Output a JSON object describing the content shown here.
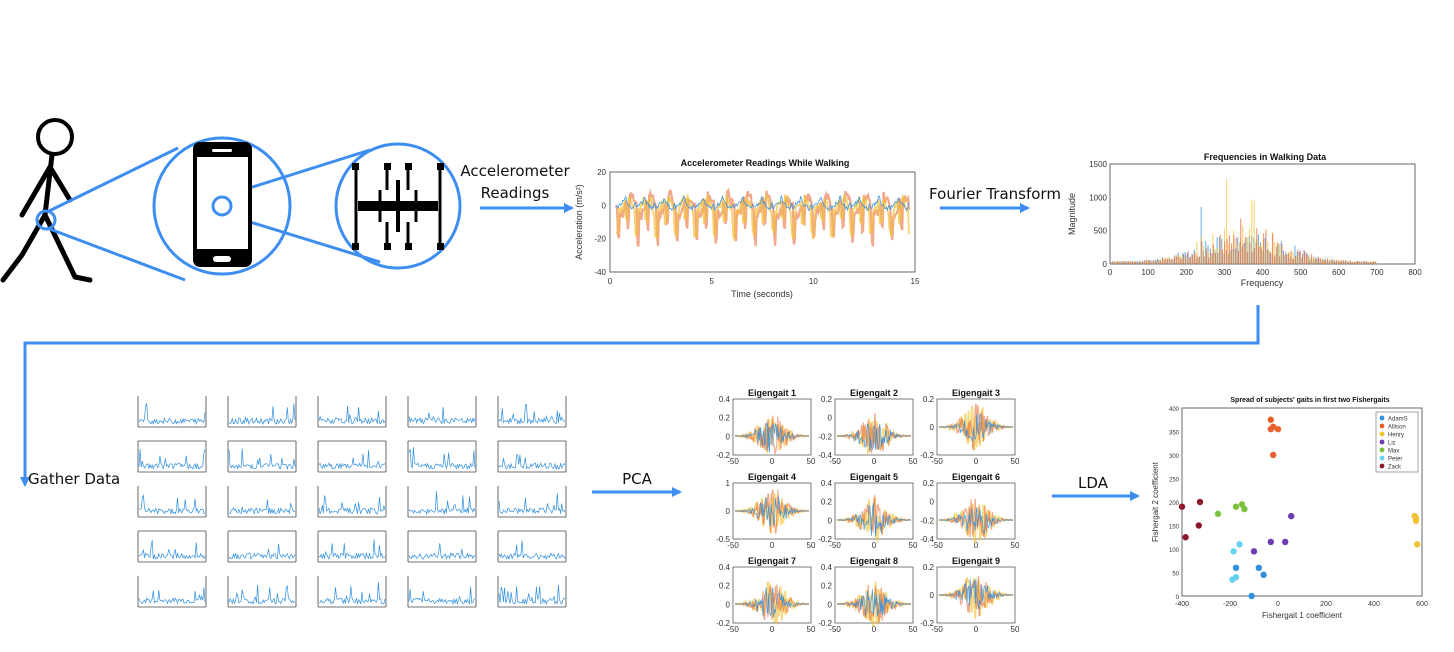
{
  "steps": {
    "accelerometer": "Accelerometer\nReadings",
    "fourier": "Fourier Transform",
    "gather": "Gather Data",
    "pca": "PCA",
    "lda": "LDA"
  },
  "colors": {
    "accent": "#3d8ef0",
    "blue": "#2f8fe0",
    "orange": "#e8602c",
    "yellow": "#f2c232",
    "purple": "#6e3bb3",
    "green": "#7cc13f",
    "cyan": "#63d3ef",
    "maroon": "#8c1a2c"
  },
  "accel_chart": {
    "title": "Accelerometer Readings While Walking",
    "xlabel": "Time (seconds)",
    "ylabel": "Acceleration (m/s²)",
    "xticks": [
      "0",
      "5",
      "10",
      "15"
    ],
    "yticks": [
      "20",
      "0",
      "-20",
      "-40"
    ]
  },
  "freq_chart": {
    "title": "Frequencies in Walking Data",
    "xlabel": "Frequency",
    "ylabel": "Magnitude",
    "xticks": [
      "0",
      "100",
      "200",
      "300",
      "400",
      "500",
      "600",
      "700",
      "800"
    ],
    "yticks": [
      "1500",
      "1000",
      "500",
      "0"
    ]
  },
  "eigengaits": [
    {
      "title": "Eigengait 1",
      "yticks": [
        "0.4",
        "0.2",
        "0",
        "-0.2"
      ]
    },
    {
      "title": "Eigengait 2",
      "yticks": [
        "0.2",
        "0",
        "-0.2",
        "-0.4"
      ]
    },
    {
      "title": "Eigengait 3",
      "yticks": [
        "0.2",
        "0",
        "-0.2"
      ]
    },
    {
      "title": "Eigengait 4",
      "yticks": [
        "1",
        "0",
        "-0.5"
      ]
    },
    {
      "title": "Eigengait 5",
      "yticks": [
        "0.4",
        "0.2",
        "0",
        "-0.2"
      ]
    },
    {
      "title": "Eigengait 6",
      "yticks": [
        "0.2",
        "0",
        "-0.2",
        "-0.4"
      ]
    },
    {
      "title": "Eigengait 7",
      "yticks": [
        "0.4",
        "0.2",
        "0",
        "-0.2"
      ]
    },
    {
      "title": "Eigengait 8",
      "yticks": [
        "0.4",
        "0.2",
        "0",
        "-0.2"
      ]
    },
    {
      "title": "Eigengait 9",
      "yticks": [
        "0.2",
        "0",
        "-0.2"
      ]
    }
  ],
  "eigen_xticks": [
    "-50",
    "0",
    "50"
  ],
  "chart_data": {
    "type": "scatter",
    "title": "Spread of subjects' gaits in first two Fishergaits",
    "xlabel": "Fishergait 1 coefficient",
    "ylabel": "Fishergait 2 coefficient",
    "xlim": [
      -400,
      600
    ],
    "ylim": [
      0,
      400
    ],
    "xticks": [
      "-400",
      "-200",
      "0",
      "200",
      "400",
      "600"
    ],
    "yticks": [
      "400",
      "350",
      "300",
      "250",
      "200",
      "150",
      "100",
      "50",
      "0"
    ],
    "legend_position": "top-right",
    "series": [
      {
        "name": "AdamS",
        "color": "#2f8fe0",
        "points": [
          [
            -175,
            60
          ],
          [
            -80,
            60
          ],
          [
            -60,
            45
          ],
          [
            -110,
            0
          ]
        ]
      },
      {
        "name": "Allison",
        "color": "#e8602c",
        "points": [
          [
            -30,
            375
          ],
          [
            -20,
            360
          ],
          [
            -30,
            355
          ],
          [
            0,
            355
          ],
          [
            -20,
            300
          ]
        ]
      },
      {
        "name": "Henry",
        "color": "#f2c232",
        "points": [
          [
            570,
            170
          ],
          [
            575,
            165
          ],
          [
            575,
            160
          ],
          [
            580,
            110
          ]
        ]
      },
      {
        "name": "Liz",
        "color": "#6e3bb3",
        "points": [
          [
            55,
            170
          ],
          [
            -30,
            115
          ],
          [
            30,
            115
          ],
          [
            -100,
            95
          ]
        ]
      },
      {
        "name": "Max",
        "color": "#7cc13f",
        "points": [
          [
            -250,
            175
          ],
          [
            -175,
            190
          ],
          [
            -150,
            195
          ],
          [
            -140,
            185
          ]
        ]
      },
      {
        "name": "Peter",
        "color": "#63d3ef",
        "points": [
          [
            -160,
            110
          ],
          [
            -185,
            95
          ],
          [
            -175,
            40
          ],
          [
            -190,
            35
          ]
        ]
      },
      {
        "name": "Zack",
        "color": "#8c1a2c",
        "points": [
          [
            -400,
            190
          ],
          [
            -325,
            200
          ],
          [
            -385,
            125
          ],
          [
            -330,
            150
          ]
        ]
      }
    ]
  }
}
